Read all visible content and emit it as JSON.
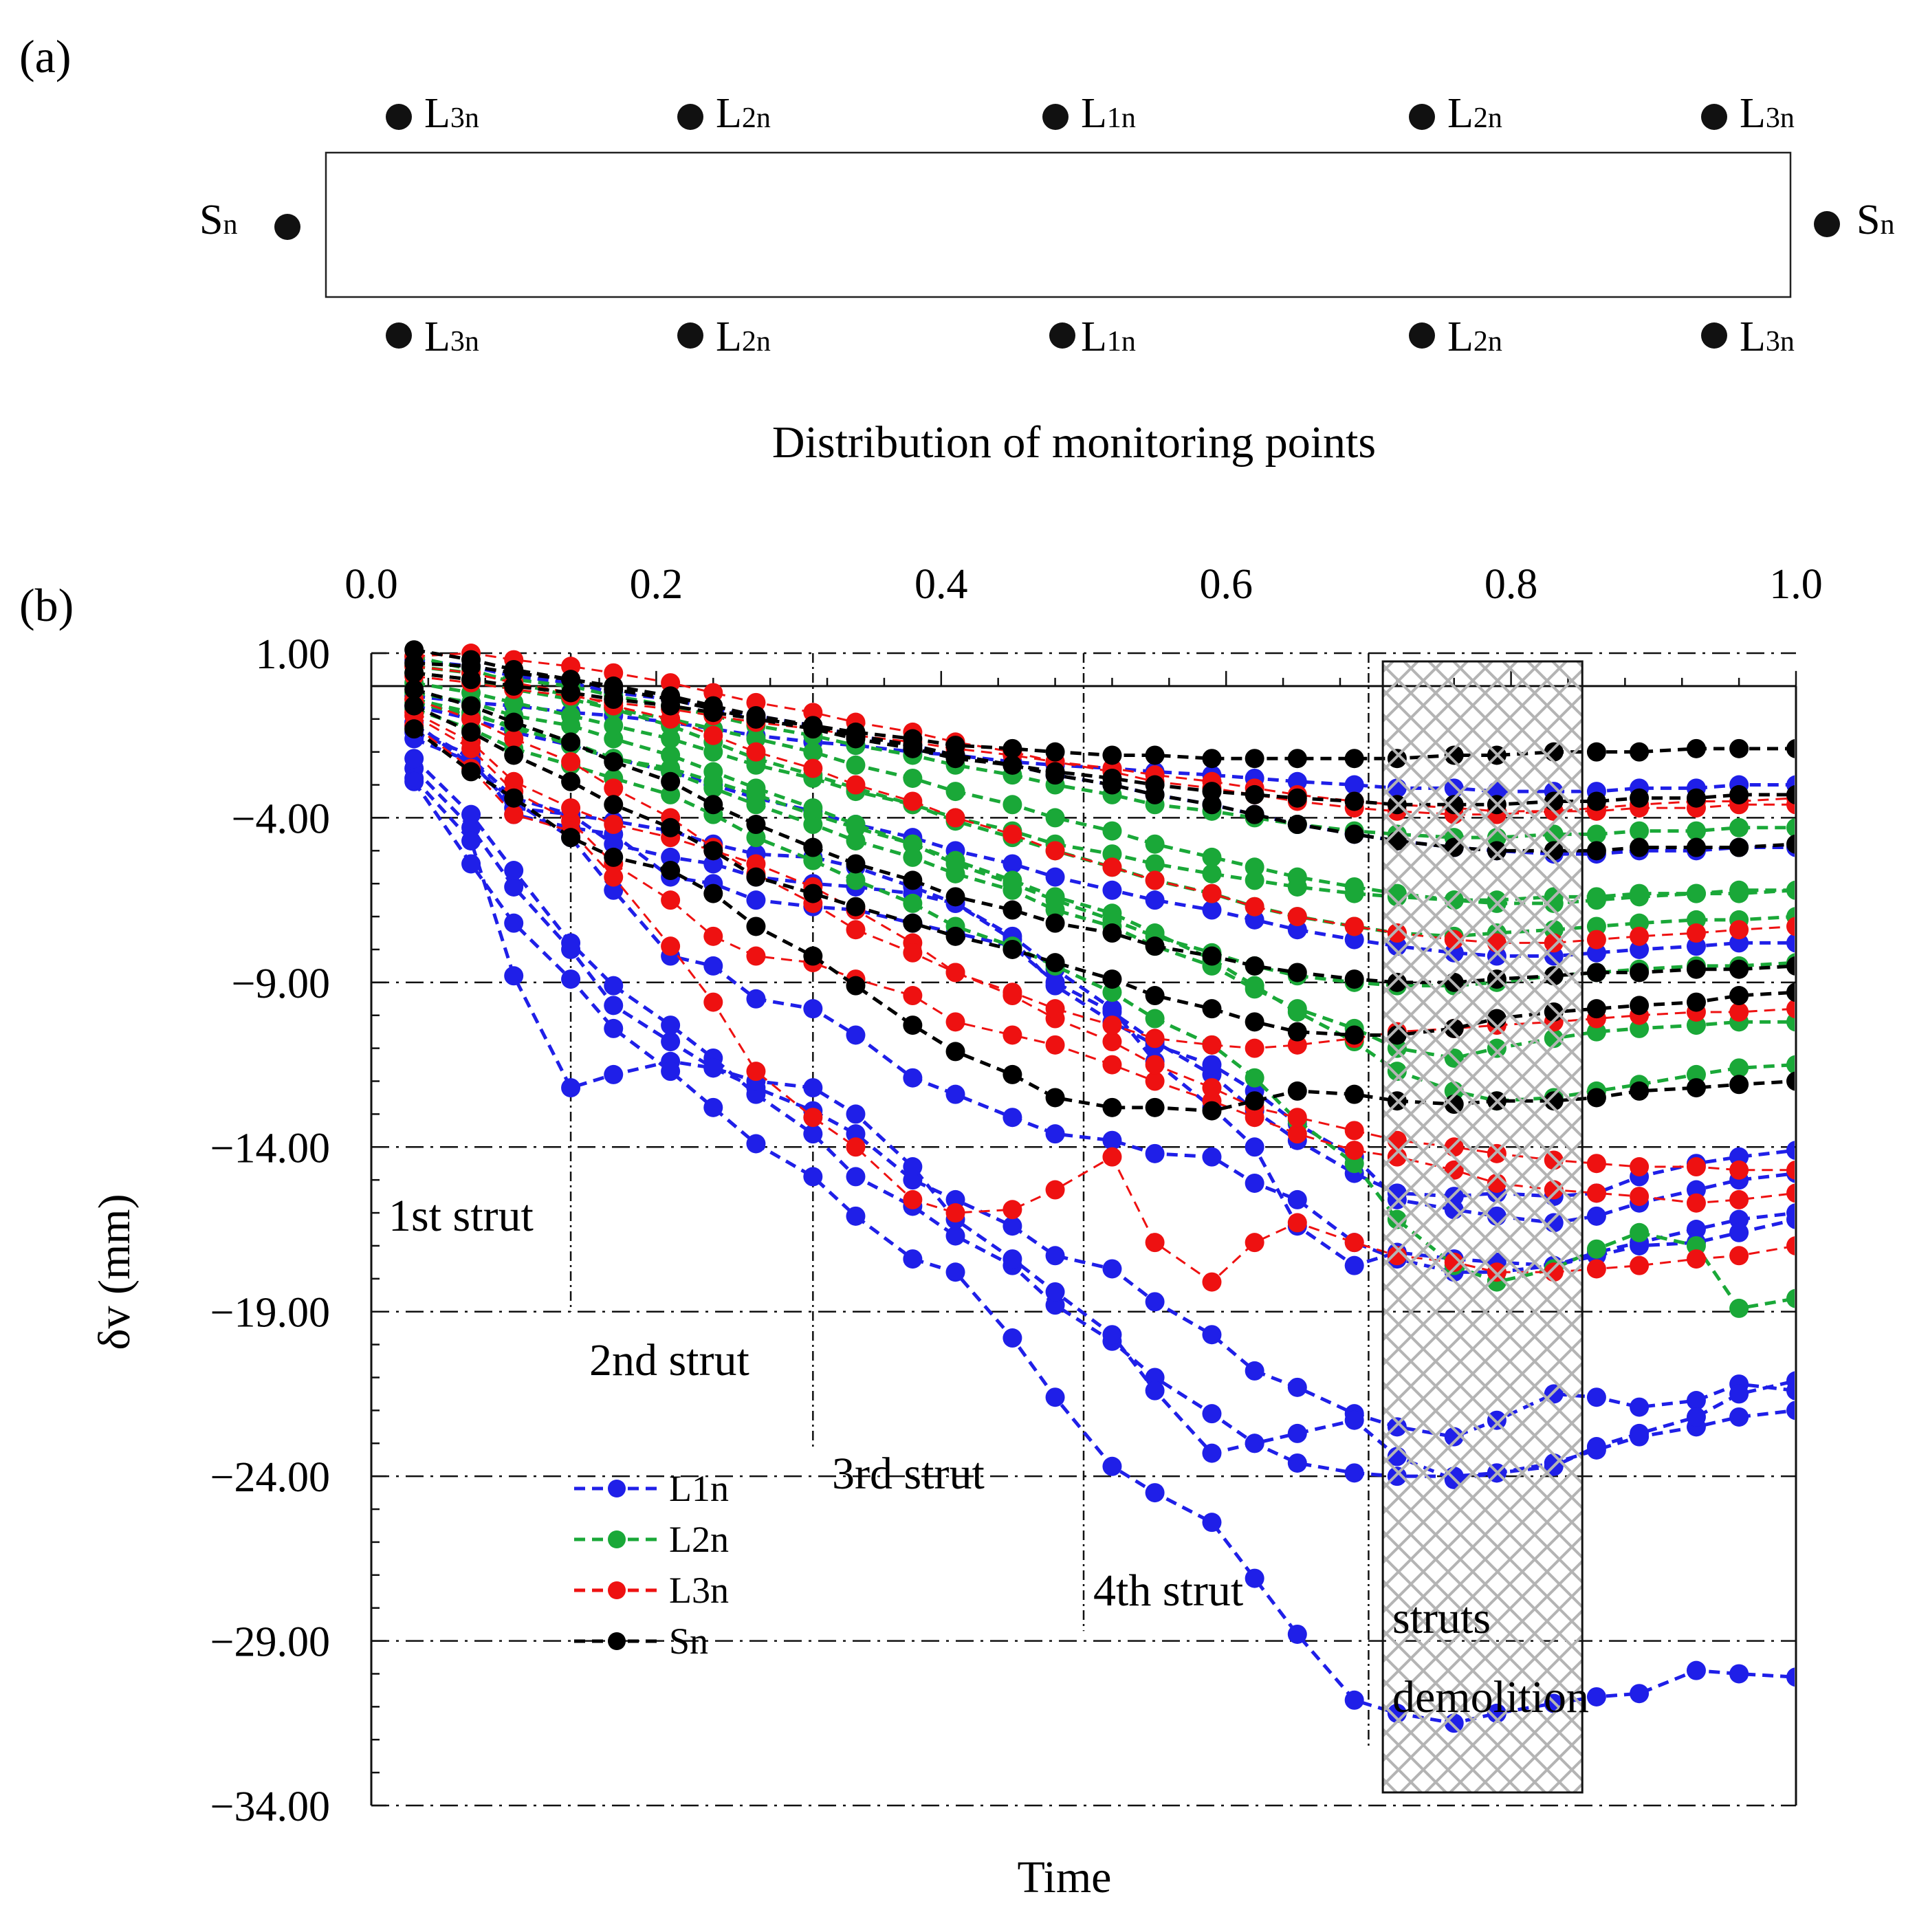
{
  "panel_a": {
    "label": "(a)",
    "caption": "Distribution of monitoring points",
    "points": [
      {
        "text": "L",
        "sub": "3n"
      },
      {
        "text": "L",
        "sub": "2n"
      },
      {
        "text": "L",
        "sub": "1n"
      },
      {
        "text": "L",
        "sub": "2n"
      },
      {
        "text": "L",
        "sub": "3n"
      },
      {
        "text": "L",
        "sub": "3n"
      },
      {
        "text": "L",
        "sub": "2n"
      },
      {
        "text": "L",
        "sub": "1n"
      },
      {
        "text": "L",
        "sub": "2n"
      },
      {
        "text": "L",
        "sub": "3n"
      },
      {
        "text": "S",
        "sub": "n"
      },
      {
        "text": "S",
        "sub": "n"
      }
    ]
  },
  "panel_b": {
    "label": "(b)"
  },
  "colors": {
    "L1n": "#1f1fe8",
    "L2n": "#1aa838",
    "L3n": "#ee1111",
    "Sn": "#000000",
    "hatch": "#b4b4b4"
  },
  "chart_data": {
    "type": "line",
    "title": "",
    "xlabel": "Time",
    "ylabel": "δv (mm)",
    "xlim": [
      0,
      1.0
    ],
    "ylim": [
      -34,
      1
    ],
    "x_ticks": [
      0.0,
      0.2,
      0.4,
      0.6,
      0.8,
      1.0
    ],
    "x_tick_labels": [
      "0.0",
      "0.2",
      "0.4",
      "0.6",
      "0.8",
      "1.0"
    ],
    "y_ticks": [
      1,
      -4,
      -9,
      -14,
      -19,
      -24,
      -29,
      -34
    ],
    "y_tick_labels": [
      "1.00",
      "−4.00",
      "−9.00",
      "−14.00",
      "−19.00",
      "−24.00",
      "−29.00",
      "−34.00"
    ],
    "stages": [
      {
        "label": "1st strut",
        "x": 0.14
      },
      {
        "label": "2nd strut",
        "x": 0.31
      },
      {
        "label": "3rd strut",
        "x": 0.5
      },
      {
        "label": "4th strut",
        "x": 0.7
      }
    ],
    "demolition": {
      "label1": "struts",
      "label2": "demolition",
      "x_range": [
        0.71,
        0.85
      ]
    },
    "legend": [
      "L1n",
      "L2n",
      "L3n",
      "Sn"
    ],
    "x": [
      0.03,
      0.07,
      0.1,
      0.14,
      0.17,
      0.21,
      0.24,
      0.27,
      0.31,
      0.34,
      0.38,
      0.41,
      0.45,
      0.48,
      0.52,
      0.55,
      0.59,
      0.62,
      0.65,
      0.69,
      0.72,
      0.76,
      0.79,
      0.83,
      0.86,
      0.89,
      0.93,
      0.96,
      1.0
    ],
    "series": [
      {
        "name": "L1n",
        "values": [
          -1.4,
          -2.1,
          -3.9,
          -4.3,
          -4.5,
          -5.8,
          -6.0,
          -6.5,
          -6.7,
          -6.8,
          -7.2,
          -7.5,
          -7.9,
          -9.0,
          -9.9,
          -10.8,
          -11.8,
          -12.9,
          -13.8,
          -14.8,
          -15.4,
          -15.5,
          -15.4,
          -15.5,
          -15.4,
          -14.9,
          -14.5,
          -14.3,
          -14.1
        ]
      },
      {
        "name": "L1n",
        "values": [
          -1.6,
          -2.3,
          -3.7,
          -3.9,
          -4.1,
          -4.4,
          -4.8,
          -5.1,
          -5.2,
          -5.5,
          -6.1,
          -6.6,
          -7.7,
          -9.1,
          -10.2,
          -10.9,
          -11.5,
          -12.3,
          -13.3,
          -14.3,
          -15.6,
          -15.9,
          -16.1,
          -16.3,
          -16.1,
          -15.7,
          -15.3,
          -15.0,
          -14.8
        ]
      },
      {
        "name": "L1n",
        "values": [
          -1.1,
          -2.4,
          -3.5,
          -4.6,
          -6.2,
          -8.2,
          -8.5,
          -9.5,
          -9.8,
          -10.6,
          -11.9,
          -12.4,
          -13.1,
          -13.6,
          -13.8,
          -14.2,
          -14.3,
          -15.1,
          -15.6,
          -16.9,
          -17.4,
          -17.8,
          -17.8,
          -17.6,
          -17.2,
          -16.9,
          -16.5,
          -16.2,
          -16.0
        ]
      },
      {
        "name": "L1n",
        "values": [
          -1.2,
          -2.2,
          -3.4,
          -3.9,
          -4.8,
          -5.2,
          -5.4,
          -5.8,
          -6.0,
          -6.1,
          -6.3,
          -6.6,
          -7.6,
          -8.6,
          -9.8,
          -11.4,
          -12.8,
          -14.0,
          -16.4,
          -17.6,
          -17.2,
          -17.4,
          -17.5,
          -17.6,
          -17.3,
          -17.0,
          -16.9,
          -16.6,
          -16.2
        ]
      },
      {
        "name": "L1n",
        "values": [
          -2.5,
          -4.3,
          -6.1,
          -8.0,
          -9.7,
          -10.8,
          -11.6,
          -12.2,
          -12.9,
          -13.6,
          -15.0,
          -15.6,
          -16.4,
          -17.3,
          -17.7,
          -18.7,
          -19.7,
          -20.8,
          -21.3,
          -22.1,
          -22.5,
          -22.8,
          -22.3,
          -21.5,
          -21.6,
          -21.9,
          -21.7,
          -21.2,
          -21.4
        ]
      },
      {
        "name": "L1n",
        "values": [
          -2.2,
          -3.9,
          -5.6,
          -7.8,
          -9.1,
          -10.3,
          -11.3,
          -12.4,
          -13.6,
          -14.9,
          -15.8,
          -16.7,
          -17.6,
          -18.8,
          -19.9,
          -21.0,
          -22.1,
          -23.0,
          -23.6,
          -23.9,
          -24.0,
          -24.0,
          -23.9,
          -23.6,
          -23.2,
          -22.8,
          -22.5,
          -22.2,
          -22.0
        ]
      },
      {
        "name": "L1n",
        "values": [
          -2.8,
          -4.7,
          -8.8,
          -12.2,
          -11.8,
          -11.4,
          -11.6,
          -12.0,
          -12.2,
          -13.0,
          -14.6,
          -16.2,
          -17.4,
          -18.4,
          -19.7,
          -21.4,
          -23.3,
          -23.0,
          -22.7,
          -22.3,
          -23.4,
          -24.1,
          -23.9,
          -23.7,
          -23.1,
          -22.7,
          -22.2,
          -21.5,
          -21.1
        ]
      },
      {
        "name": "L1n",
        "values": [
          -2.9,
          -5.4,
          -7.2,
          -8.9,
          -10.4,
          -11.7,
          -12.8,
          -13.9,
          -14.9,
          -16.1,
          -17.4,
          -17.8,
          -19.8,
          -21.6,
          -23.7,
          -24.5,
          -25.4,
          -27.1,
          -28.8,
          -30.8,
          -31.2,
          -31.5,
          -31.2,
          -30.9,
          -30.7,
          -30.6,
          -29.9,
          -30.0,
          -30.1
        ]
      },
      {
        "name": "L1n",
        "values": [
          -0.3,
          -0.5,
          -0.6,
          -0.8,
          -0.9,
          -1.1,
          -1.3,
          -1.5,
          -1.7,
          -1.8,
          -2.0,
          -2.1,
          -2.3,
          -2.4,
          -2.5,
          -2.6,
          -2.7,
          -2.8,
          -2.9,
          -3.0,
          -3.1,
          -3.1,
          -3.2,
          -3.2,
          -3.2,
          -3.1,
          -3.1,
          -3.0,
          -3.0
        ]
      },
      {
        "name": "L1n",
        "values": [
          -0.6,
          -1.0,
          -1.4,
          -1.8,
          -2.2,
          -2.6,
          -3.0,
          -3.4,
          -3.8,
          -4.2,
          -4.6,
          -5.0,
          -5.4,
          -5.8,
          -6.2,
          -6.5,
          -6.8,
          -7.1,
          -7.4,
          -7.7,
          -7.9,
          -8.1,
          -8.2,
          -8.2,
          -8.1,
          -8.0,
          -7.9,
          -7.8,
          -7.8
        ]
      },
      {
        "name": "L1n",
        "values": [
          0.8,
          0.6,
          0.3,
          0.1,
          -0.2,
          -0.4,
          -0.7,
          -0.9,
          -1.2,
          -1.5,
          -1.8,
          -2.1,
          -2.4,
          -2.7,
          -3.0,
          -3.3,
          -3.6,
          -3.9,
          -4.2,
          -4.5,
          -4.7,
          -4.9,
          -5.0,
          -5.1,
          -5.1,
          -5.0,
          -5.0,
          -4.9,
          -4.9
        ]
      },
      {
        "name": "L2n",
        "values": [
          -0.5,
          -0.9,
          -1.2,
          -1.8,
          -2.2,
          -2.5,
          -2.9,
          -3.3,
          -3.9,
          -4.3,
          -4.8,
          -5.3,
          -5.9,
          -6.4,
          -6.9,
          -7.5,
          -8.3,
          -9.1,
          -9.9,
          -10.8,
          -11.7,
          -12.3,
          -12.6,
          -12.5,
          -12.3,
          -12.1,
          -11.8,
          -11.6,
          -11.5
        ]
      },
      {
        "name": "L2n",
        "values": [
          -0.7,
          -1.3,
          -1.9,
          -2.4,
          -2.8,
          -3.3,
          -3.9,
          -4.6,
          -5.3,
          -5.9,
          -6.6,
          -7.3,
          -7.9,
          -8.5,
          -9.3,
          -10.1,
          -10.9,
          -11.9,
          -13.2,
          -14.5,
          -16.2,
          -17.6,
          -18.1,
          -17.7,
          -17.1,
          -16.6,
          -17.0,
          -18.9,
          -18.6
        ]
      },
      {
        "name": "L2n",
        "values": [
          -0.4,
          -0.8,
          -1.3,
          -1.7,
          -2.2,
          -2.6,
          -3.1,
          -3.6,
          -4.2,
          -4.7,
          -5.2,
          -5.7,
          -6.2,
          -6.8,
          -7.3,
          -7.9,
          -8.5,
          -9.2,
          -9.8,
          -10.4,
          -11.0,
          -11.3,
          -11.0,
          -10.7,
          -10.5,
          -10.4,
          -10.3,
          -10.2,
          -10.2
        ]
      },
      {
        "name": "L2n",
        "values": [
          -0.2,
          -0.5,
          -0.9,
          -1.2,
          -1.6,
          -2.1,
          -2.6,
          -3.1,
          -3.7,
          -4.2,
          -4.8,
          -5.4,
          -6.0,
          -6.5,
          -7.1,
          -7.6,
          -8.1,
          -8.5,
          -8.8,
          -9.0,
          -9.1,
          -9.1,
          -9.0,
          -8.8,
          -8.7,
          -8.6,
          -8.5,
          -8.5,
          -8.4
        ]
      },
      {
        "name": "L2n",
        "values": [
          0.9,
          0.5,
          0.1,
          -0.3,
          -0.7,
          -1.2,
          -1.7,
          -2.2,
          -2.7,
          -3.1,
          -3.6,
          -4.1,
          -4.6,
          -5.0,
          -5.5,
          -5.9,
          -6.3,
          -6.7,
          -7.0,
          -7.3,
          -7.5,
          -7.6,
          -7.5,
          -7.4,
          -7.3,
          -7.2,
          -7.1,
          -7.1,
          -7.0
        ]
      },
      {
        "name": "L2n",
        "values": [
          0.4,
          0.2,
          -0.1,
          -0.4,
          -0.7,
          -1.0,
          -1.3,
          -1.6,
          -2.0,
          -2.4,
          -2.8,
          -3.2,
          -3.6,
          -4.0,
          -4.4,
          -4.8,
          -5.2,
          -5.5,
          -5.8,
          -6.1,
          -6.3,
          -6.5,
          -6.6,
          -6.6,
          -6.5,
          -6.4,
          -6.3,
          -6.3,
          -6.2
        ]
      },
      {
        "name": "L2n",
        "values": [
          0.1,
          -0.2,
          -0.5,
          -0.9,
          -1.2,
          -1.6,
          -2.0,
          -2.4,
          -2.8,
          -3.2,
          -3.6,
          -4.0,
          -4.4,
          -4.8,
          -5.1,
          -5.4,
          -5.7,
          -5.9,
          -6.1,
          -6.3,
          -6.4,
          -6.5,
          -6.5,
          -6.4,
          -6.4,
          -6.3,
          -6.3,
          -6.2,
          -6.2
        ]
      },
      {
        "name": "L2n",
        "values": [
          0.6,
          0.4,
          0.2,
          0.0,
          -0.3,
          -0.6,
          -0.9,
          -1.2,
          -1.5,
          -1.8,
          -2.1,
          -2.4,
          -2.7,
          -3.0,
          -3.3,
          -3.6,
          -3.8,
          -4.0,
          -4.2,
          -4.4,
          -4.5,
          -4.6,
          -4.6,
          -4.5,
          -4.5,
          -4.4,
          -4.4,
          -4.3,
          -4.3
        ]
      },
      {
        "name": "L3n",
        "values": [
          -0.9,
          -1.9,
          -3.2,
          -4.1,
          -5.4,
          -6.5,
          -7.6,
          -8.2,
          -8.4,
          -8.9,
          -9.4,
          -10.2,
          -10.6,
          -10.9,
          -11.5,
          -12.0,
          -12.6,
          -13.1,
          -13.6,
          -14.1,
          -14.3,
          -14.7,
          -15.1,
          -15.3,
          -15.4,
          -15.5,
          -15.7,
          -15.6,
          -15.4
        ]
      },
      {
        "name": "L3n",
        "values": [
          -1.2,
          -2.5,
          -3.9,
          -4.4,
          -5.8,
          -7.9,
          -9.6,
          -11.7,
          -13.1,
          -14.0,
          -15.6,
          -16.0,
          -15.9,
          -15.3,
          -14.3,
          -16.9,
          -18.1,
          -16.9,
          -16.3,
          -16.9,
          -17.3,
          -17.5,
          -17.8,
          -17.8,
          -17.7,
          -17.6,
          -17.4,
          -17.3,
          -17.0
        ]
      },
      {
        "name": "L3n",
        "values": [
          -0.8,
          -1.7,
          -2.9,
          -3.7,
          -4.2,
          -4.6,
          -5.0,
          -5.4,
          -6.1,
          -6.8,
          -7.8,
          -8.7,
          -9.4,
          -10.1,
          -10.8,
          -11.5,
          -12.2,
          -12.8,
          -13.1,
          -13.5,
          -13.8,
          -14.0,
          -14.2,
          -14.4,
          -14.5,
          -14.6,
          -14.6,
          -14.7,
          -14.7
        ]
      },
      {
        "name": "L3n",
        "values": [
          -0.4,
          -1.0,
          -1.6,
          -2.3,
          -3.1,
          -4.0,
          -4.9,
          -5.7,
          -6.6,
          -7.4,
          -8.1,
          -8.7,
          -9.3,
          -9.8,
          -10.3,
          -10.7,
          -10.9,
          -11.0,
          -10.9,
          -10.7,
          -10.5,
          -10.4,
          -10.3,
          -10.2,
          -10.1,
          -10.0,
          -9.9,
          -9.9,
          -9.8
        ]
      },
      {
        "name": "L3n",
        "values": [
          0.6,
          0.4,
          0.1,
          -0.2,
          -0.6,
          -1.0,
          -1.5,
          -2.0,
          -2.5,
          -3.0,
          -3.5,
          -4.0,
          -4.5,
          -5.0,
          -5.5,
          -5.9,
          -6.3,
          -6.7,
          -7.0,
          -7.3,
          -7.5,
          -7.7,
          -7.8,
          -7.8,
          -7.7,
          -7.6,
          -7.5,
          -7.4,
          -7.3
        ]
      },
      {
        "name": "L3n",
        "values": [
          0.9,
          1.0,
          0.8,
          0.6,
          0.4,
          0.1,
          -0.2,
          -0.5,
          -0.8,
          -1.1,
          -1.4,
          -1.7,
          -2.0,
          -2.3,
          -2.6,
          -2.9,
          -3.1,
          -3.3,
          -3.5,
          -3.7,
          -3.8,
          -3.9,
          -3.9,
          -3.8,
          -3.7,
          -3.6,
          -3.5,
          -3.5,
          -3.4
        ]
      },
      {
        "name": "L3n",
        "values": [
          0.3,
          0.1,
          -0.1,
          -0.3,
          -0.5,
          -0.7,
          -0.9,
          -1.1,
          -1.3,
          -1.5,
          -1.7,
          -1.9,
          -2.1,
          -2.3,
          -2.5,
          -2.7,
          -2.9,
          -3.1,
          -3.3,
          -3.5,
          -3.6,
          -3.7,
          -3.8,
          -3.8,
          -3.8,
          -3.7,
          -3.7,
          -3.6,
          -3.6
        ]
      },
      {
        "name": "Sn",
        "values": [
          -1.3,
          -2.6,
          -3.4,
          -4.6,
          -5.2,
          -5.6,
          -6.3,
          -7.3,
          -8.2,
          -9.1,
          -10.3,
          -11.1,
          -11.8,
          -12.5,
          -12.8,
          -12.8,
          -12.9,
          -12.6,
          -12.3,
          -12.4,
          -12.6,
          -12.7,
          -12.6,
          -12.6,
          -12.5,
          -12.3,
          -12.2,
          -12.1,
          -12.0
        ]
      },
      {
        "name": "Sn",
        "values": [
          -0.6,
          -1.4,
          -2.1,
          -2.9,
          -3.6,
          -4.3,
          -5.0,
          -5.8,
          -6.3,
          -6.7,
          -7.2,
          -7.6,
          -8.0,
          -8.4,
          -8.9,
          -9.4,
          -9.8,
          -10.2,
          -10.5,
          -10.6,
          -10.6,
          -10.4,
          -10.1,
          -9.9,
          -9.8,
          -9.7,
          -9.6,
          -9.4,
          -9.3
        ]
      },
      {
        "name": "Sn",
        "values": [
          -0.1,
          -0.6,
          -1.1,
          -1.7,
          -2.3,
          -2.9,
          -3.6,
          -4.2,
          -4.9,
          -5.4,
          -5.9,
          -6.4,
          -6.8,
          -7.2,
          -7.5,
          -7.9,
          -8.2,
          -8.5,
          -8.7,
          -8.9,
          -9.0,
          -9.0,
          -8.9,
          -8.8,
          -8.7,
          -8.7,
          -8.6,
          -8.6,
          -8.5
        ]
      },
      {
        "name": "Sn",
        "values": [
          0.7,
          0.6,
          0.4,
          0.2,
          0.0,
          -0.3,
          -0.6,
          -0.9,
          -1.2,
          -1.5,
          -1.8,
          -2.1,
          -2.4,
          -2.7,
          -3.0,
          -3.3,
          -3.6,
          -3.9,
          -4.2,
          -4.5,
          -4.7,
          -4.9,
          -5.0,
          -5.0,
          -5.0,
          -4.9,
          -4.9,
          -4.9,
          -4.8
        ]
      },
      {
        "name": "Sn",
        "values": [
          1.1,
          0.8,
          0.5,
          0.2,
          -0.1,
          -0.4,
          -0.7,
          -1.0,
          -1.3,
          -1.6,
          -1.9,
          -2.2,
          -2.4,
          -2.6,
          -2.8,
          -3.0,
          -3.2,
          -3.3,
          -3.4,
          -3.5,
          -3.6,
          -3.6,
          -3.6,
          -3.5,
          -3.5,
          -3.4,
          -3.4,
          -3.3,
          -3.3
        ]
      },
      {
        "name": "Sn",
        "values": [
          0.4,
          0.2,
          0.0,
          -0.2,
          -0.4,
          -0.6,
          -0.8,
          -1.0,
          -1.2,
          -1.4,
          -1.6,
          -1.8,
          -1.9,
          -2.0,
          -2.1,
          -2.1,
          -2.2,
          -2.2,
          -2.2,
          -2.2,
          -2.2,
          -2.1,
          -2.1,
          -2.0,
          -2.0,
          -2.0,
          -1.9,
          -1.9,
          -1.9
        ]
      }
    ]
  }
}
